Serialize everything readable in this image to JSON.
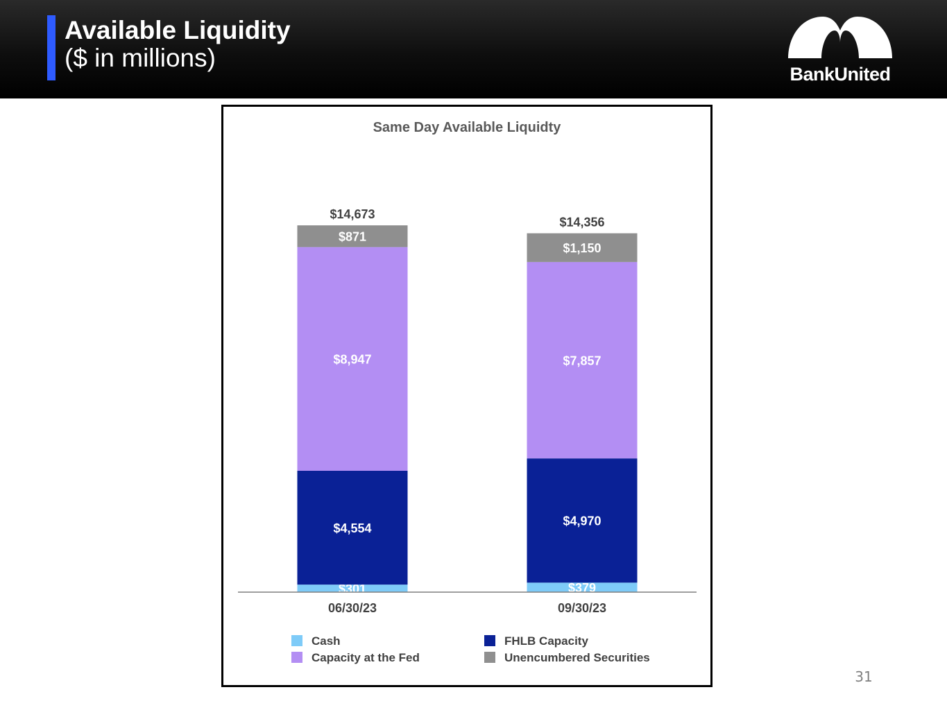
{
  "header": {
    "title": "Available Liquidity",
    "subtitle": "($ in millions)",
    "accent_color": "#2e5bff",
    "logo_text": "BankUnited"
  },
  "page_number": "31",
  "chart_data": {
    "type": "bar",
    "stacked": true,
    "title": "Same Day Available Liquidty",
    "categories": [
      "06/30/23",
      "09/30/23"
    ],
    "series": [
      {
        "name": "Cash",
        "values": [
          301,
          379
        ],
        "labels": [
          "$301",
          "$379"
        ],
        "color": "#7ecbf8"
      },
      {
        "name": "FHLB Capacity",
        "values": [
          4554,
          4970
        ],
        "labels": [
          "$4,554",
          "$4,970"
        ],
        "color": "#0a2196"
      },
      {
        "name": "Capacity at the Fed",
        "values": [
          8947,
          7857
        ],
        "labels": [
          "$8,947",
          "$7,857"
        ],
        "color": "#b38ef3"
      },
      {
        "name": "Unencumbered Securities",
        "values": [
          871,
          1150
        ],
        "labels": [
          "$871",
          "$1,150"
        ],
        "color": "#8f8f8f"
      }
    ],
    "totals": [
      14673,
      14356
    ],
    "total_labels": [
      "$14,673",
      "$14,356"
    ],
    "ylim": [
      0,
      14673
    ],
    "grid": false,
    "legend_position": "bottom"
  }
}
